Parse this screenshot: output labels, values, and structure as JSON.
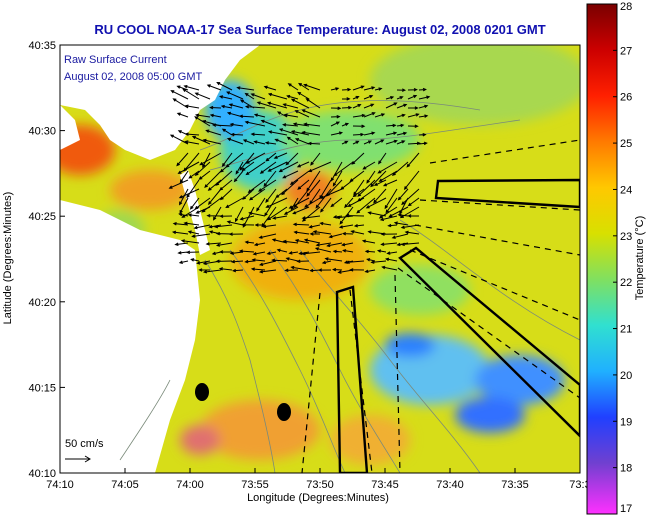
{
  "title": "RU COOL  NOAA-17  Sea Surface Temperature:  August 02, 2008 0201 GMT",
  "overlay": {
    "line1": "Raw Surface Current",
    "line2": "August 02, 2008 05:00 GMT"
  },
  "axes": {
    "xlabel": "Longitude (Degrees:Minutes)",
    "ylabel": "Latitude (Degrees:Minutes)",
    "x_ticks": [
      "74:10",
      "74:05",
      "74:00",
      "73:55",
      "73:50",
      "73:45",
      "73:40",
      "73:35",
      "73:3"
    ],
    "y_ticks": [
      "40:35",
      "40:30",
      "40:25",
      "40:20",
      "40:15",
      "40:10"
    ]
  },
  "colorbar": {
    "label": "Temperature (°C)",
    "min": 17,
    "max": 28,
    "ticks": [
      "28",
      "27",
      "26",
      "25",
      "24",
      "23",
      "22",
      "21",
      "20",
      "19",
      "18",
      "17"
    ]
  },
  "scale_vector": {
    "label": "50 cm/s"
  },
  "colors": {
    "title": "#1010b0",
    "land": "#ffffff",
    "water_base": "#dede10",
    "cold": "#3aa0ff",
    "warm": "#f06010"
  }
}
